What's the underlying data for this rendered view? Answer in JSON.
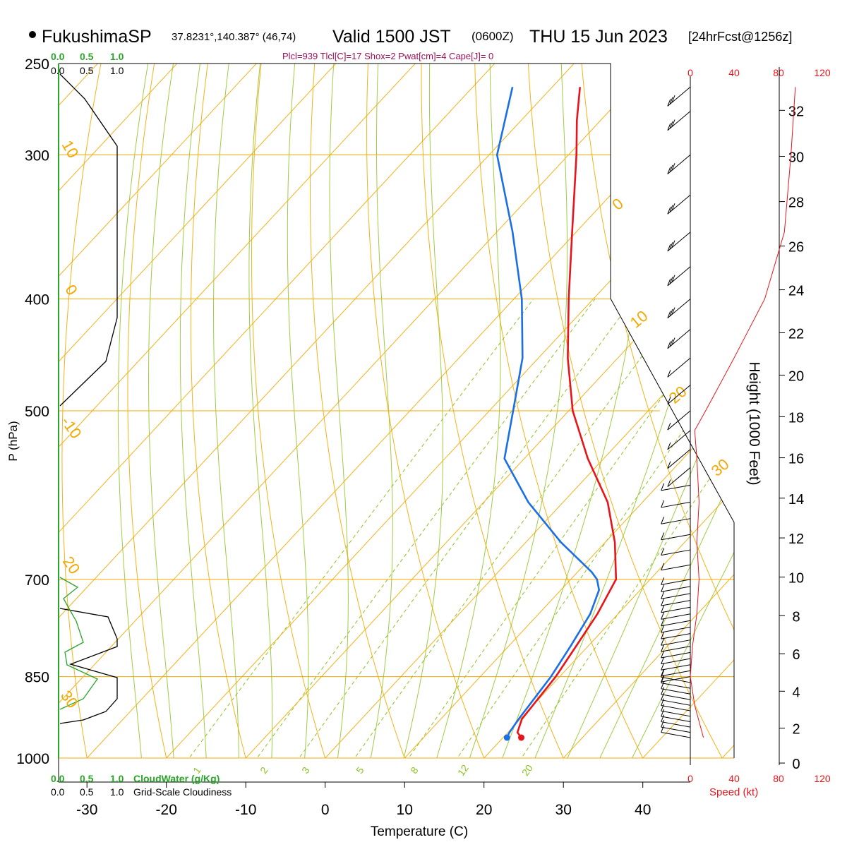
{
  "header": {
    "station": "FukushimaSP",
    "coords": "37.8231°,140.387° (46,74)",
    "valid": "Valid 1500 JST",
    "utc": "(0600Z)",
    "date": "THU 15 Jun 2023",
    "forecast": "[24hrFcst@1256z]",
    "indices": "Plcl=939 Tlcl[C]=17 Shox=2 Pwat[cm]=4 Cape[J]= 0"
  },
  "colors": {
    "temperature": "#e8141b",
    "dewpoint": "#1a6fe6",
    "isotherm": "#f5a800",
    "dry_adiabat": "#f5a800",
    "moist_adiabat": "#8cc420",
    "mixing_ratio": "#8cc420",
    "cloud_water": "#2aa52a",
    "cloudiness": "#000000",
    "speed": "#e8141b"
  },
  "chart_data": {
    "type": "line",
    "title": "FukushimaSP Valid 1500 JST (0600Z) THU 15 Jun 2023",
    "xlabel": "Temperature (C)",
    "ylabel": "P (hPa)",
    "right_label": "Height (1000 Feet)",
    "x_ticks": [
      "-30",
      "-20",
      "-10",
      "0",
      "10",
      "20",
      "30",
      "40"
    ],
    "p_ticks": [
      "250",
      "300",
      "400",
      "500",
      "700",
      "850",
      "1000"
    ],
    "p_levels": [
      250,
      300,
      400,
      500,
      700,
      850,
      1000
    ],
    "height_ticks": [
      "0",
      "2",
      "4",
      "6",
      "8",
      "10",
      "12",
      "14",
      "16",
      "18",
      "20",
      "22",
      "24",
      "26",
      "28",
      "30",
      "32"
    ],
    "series": [
      {
        "key": "temperature",
        "points": [
          [
            960,
            22.3
          ],
          [
            950,
            21.2
          ],
          [
            925,
            20.2
          ],
          [
            850,
            19.5
          ],
          [
            800,
            18.5
          ],
          [
            750,
            17.4
          ],
          [
            700,
            15.7
          ],
          [
            650,
            11.2
          ],
          [
            600,
            5.6
          ],
          [
            550,
            -2.0
          ],
          [
            500,
            -9.5
          ],
          [
            450,
            -16.3
          ],
          [
            400,
            -23.1
          ],
          [
            350,
            -30.5
          ],
          [
            300,
            -39.0
          ],
          [
            280,
            -43.0
          ],
          [
            262,
            -46.5
          ]
        ]
      },
      {
        "key": "dewpoint",
        "points": [
          [
            960,
            20.5
          ],
          [
            950,
            20.2
          ],
          [
            925,
            19.8
          ],
          [
            850,
            18.9
          ],
          [
            800,
            17.8
          ],
          [
            750,
            16.5
          ],
          [
            715,
            14.8
          ],
          [
            700,
            13.3
          ],
          [
            690,
            11.8
          ],
          [
            650,
            4.4
          ],
          [
            600,
            -4.4
          ],
          [
            550,
            -12.5
          ],
          [
            500,
            -17.0
          ],
          [
            450,
            -22.0
          ],
          [
            400,
            -29.0
          ],
          [
            350,
            -38.0
          ],
          [
            300,
            -49.0
          ],
          [
            262,
            -55.0
          ]
        ]
      }
    ],
    "wind_barb_levels": [
      960,
      950,
      940,
      930,
      920,
      910,
      900,
      890,
      880,
      870,
      860,
      850,
      840,
      830,
      820,
      810,
      800,
      790,
      780,
      770,
      760,
      750,
      740,
      730,
      720,
      710,
      700,
      680,
      660,
      640,
      620,
      600,
      580,
      560,
      540,
      520,
      500,
      475,
      450,
      425,
      400,
      375,
      350,
      325,
      300,
      275,
      262
    ],
    "speed_ticks": [
      "0",
      "40",
      "80",
      "120"
    ],
    "cloud_scale_ticks": [
      "0.0",
      "0.5",
      "1.0"
    ],
    "dry_adiabat_labels": [
      "10",
      "0",
      "-10",
      "20",
      "30",
      "0",
      "10",
      "20",
      "30"
    ],
    "mixing_ratio_labels": [
      "1",
      "2",
      "3",
      "5",
      "8",
      "12",
      "20"
    ]
  },
  "legend": {
    "cloudwater": "CloudWater (g/Kg)",
    "cloudiness": "Grid-Scale Cloudiness",
    "speed": "Speed (kt)"
  }
}
